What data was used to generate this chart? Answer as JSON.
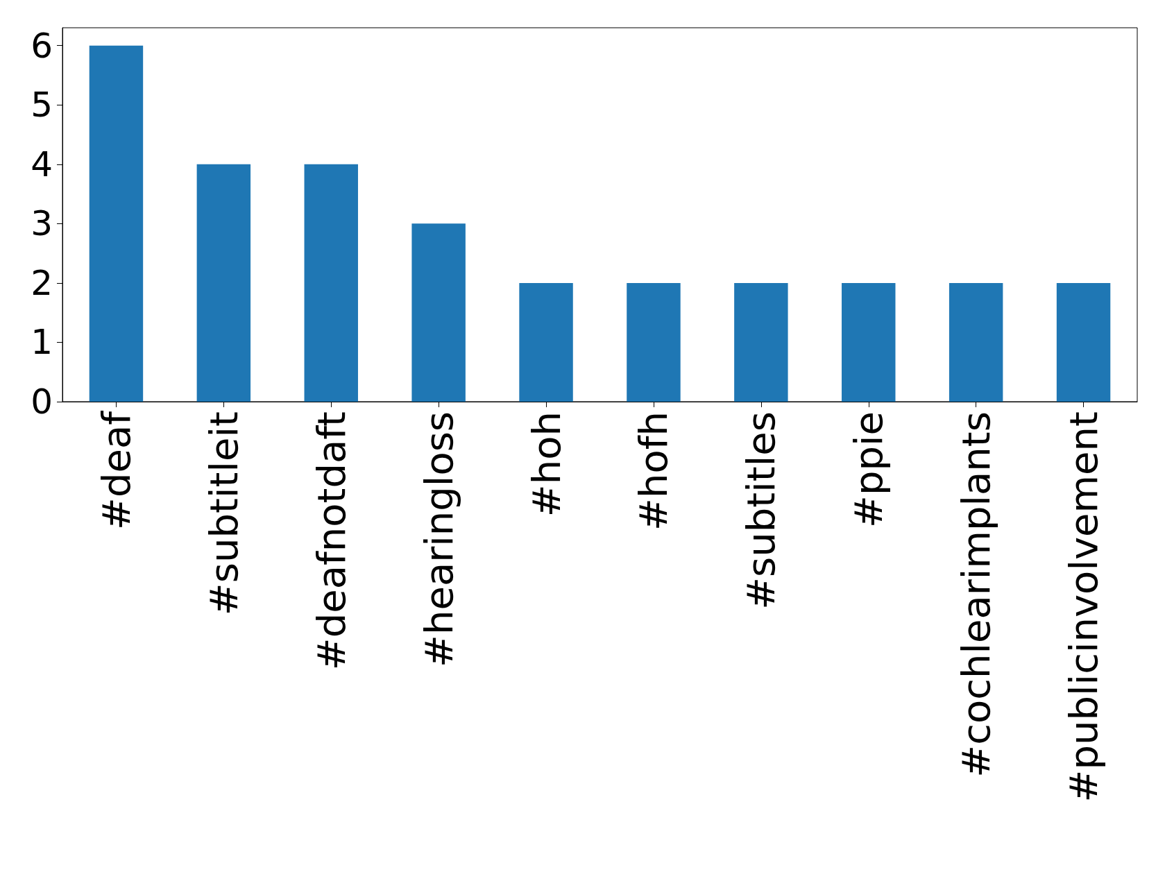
{
  "chart_data": {
    "type": "bar",
    "categories": [
      "#deaf",
      "#subtitleit",
      "#deafnotdaft",
      "#hearingloss",
      "#hoh",
      "#hofh",
      "#subtitles",
      "#ppie",
      "#cochlearimplants",
      "#publicinvolvement"
    ],
    "values": [
      6,
      4,
      4,
      3,
      2,
      2,
      2,
      2,
      2,
      2
    ],
    "color": "#1f77b4",
    "ylim": [
      0,
      6.3
    ],
    "yticks": [
      0,
      1,
      2,
      3,
      4,
      5,
      6
    ],
    "grid": false
  }
}
